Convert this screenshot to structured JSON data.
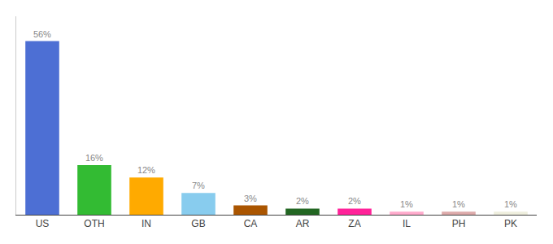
{
  "chart_data": {
    "type": "bar",
    "categories": [
      "US",
      "OTH",
      "IN",
      "GB",
      "CA",
      "AR",
      "ZA",
      "IL",
      "PH",
      "PK"
    ],
    "values": [
      56,
      16,
      12,
      7,
      3,
      2,
      2,
      1,
      1,
      1
    ],
    "value_labels": [
      "56%",
      "16%",
      "12%",
      "7%",
      "3%",
      "2%",
      "2%",
      "1%",
      "1%",
      "1%"
    ],
    "colors": [
      "#4d6fd4",
      "#33bb33",
      "#ffaa00",
      "#88ccee",
      "#aa5500",
      "#226622",
      "#ff2299",
      "#ffaacc",
      "#ddaaaa",
      "#eeeedd"
    ],
    "ylim": [
      0,
      64
    ],
    "grid": false,
    "data_labels": true,
    "tick_labels": "x"
  }
}
